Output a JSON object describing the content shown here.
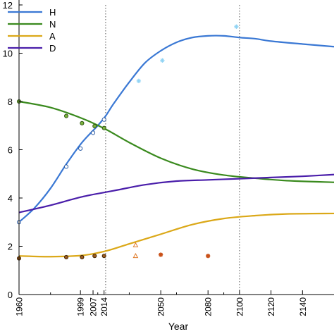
{
  "chart_data": {
    "type": "line",
    "xlabel": "Year",
    "ylabel": "",
    "xlim": [
      1960,
      2160
    ],
    "ylim": [
      0,
      12
    ],
    "yticks": [
      0,
      2,
      4,
      6,
      8,
      10,
      12
    ],
    "xticks": [
      1960,
      1999,
      2007,
      2014,
      2050,
      2080,
      2100,
      2120,
      2140
    ],
    "xtick_labels": [
      "1960",
      "1999",
      "2007",
      "2014",
      "2050",
      "2080",
      "2100",
      "2120",
      "2140"
    ],
    "minor_xticks": [
      1980,
      2010,
      2030,
      2060,
      2090
    ],
    "reference_lines": [
      2015,
      2100
    ],
    "grid": false,
    "legend_position": "top-left",
    "series": [
      {
        "name": "H",
        "color": "#3a78d4",
        "curve": [
          [
            1960,
            3.0
          ],
          [
            1970,
            3.6
          ],
          [
            1980,
            4.4
          ],
          [
            1990,
            5.4
          ],
          [
            2000,
            6.3
          ],
          [
            2010,
            7.0
          ],
          [
            2015,
            7.4
          ],
          [
            2020,
            7.9
          ],
          [
            2030,
            8.8
          ],
          [
            2040,
            9.6
          ],
          [
            2050,
            10.1
          ],
          [
            2060,
            10.45
          ],
          [
            2070,
            10.65
          ],
          [
            2080,
            10.72
          ],
          [
            2090,
            10.72
          ],
          [
            2100,
            10.65
          ],
          [
            2110,
            10.6
          ],
          [
            2120,
            10.5
          ],
          [
            2140,
            10.38
          ],
          [
            2160,
            10.27
          ]
        ],
        "observed": [
          [
            1960,
            3.0
          ],
          [
            1990,
            5.3
          ],
          [
            1999,
            6.05
          ],
          [
            2007,
            6.7
          ],
          [
            2014,
            7.25
          ]
        ],
        "projected": [
          [
            2036,
            8.85
          ],
          [
            2051,
            9.7
          ],
          [
            2098,
            11.1
          ]
        ]
      },
      {
        "name": "N",
        "color": "#3a8a1e",
        "curve": [
          [
            1960,
            8.0
          ],
          [
            1980,
            7.75
          ],
          [
            2000,
            7.3
          ],
          [
            2015,
            6.85
          ],
          [
            2030,
            6.3
          ],
          [
            2050,
            5.65
          ],
          [
            2070,
            5.2
          ],
          [
            2090,
            4.95
          ],
          [
            2110,
            4.82
          ],
          [
            2130,
            4.72
          ],
          [
            2160,
            4.65
          ]
        ],
        "observed": [
          [
            1960,
            8.0
          ],
          [
            1990,
            7.4
          ],
          [
            2000,
            7.1
          ],
          [
            2008,
            6.98
          ],
          [
            2014,
            6.9
          ]
        ],
        "projected": []
      },
      {
        "name": "A",
        "color": "#dba818",
        "curve": [
          [
            1960,
            1.6
          ],
          [
            1980,
            1.57
          ],
          [
            2000,
            1.62
          ],
          [
            2015,
            1.8
          ],
          [
            2030,
            2.1
          ],
          [
            2050,
            2.5
          ],
          [
            2070,
            2.9
          ],
          [
            2090,
            3.15
          ],
          [
            2110,
            3.27
          ],
          [
            2130,
            3.34
          ],
          [
            2160,
            3.36
          ]
        ],
        "observed": [
          [
            1960,
            1.5
          ],
          [
            1990,
            1.55
          ],
          [
            2000,
            1.55
          ],
          [
            2008,
            1.6
          ],
          [
            2014,
            1.6
          ]
        ],
        "projected": [
          [
            2034,
            2.05
          ],
          [
            2034,
            1.6
          ],
          [
            2050,
            1.65
          ],
          [
            2080,
            1.6
          ]
        ]
      },
      {
        "name": "D",
        "color": "#4a1eaa",
        "curve": [
          [
            1960,
            3.4
          ],
          [
            1980,
            3.7
          ],
          [
            2000,
            4.05
          ],
          [
            2020,
            4.3
          ],
          [
            2040,
            4.55
          ],
          [
            2060,
            4.7
          ],
          [
            2080,
            4.75
          ],
          [
            2100,
            4.8
          ],
          [
            2120,
            4.85
          ],
          [
            2140,
            4.9
          ],
          [
            2160,
            4.97
          ]
        ],
        "observed": [],
        "projected": []
      }
    ]
  }
}
